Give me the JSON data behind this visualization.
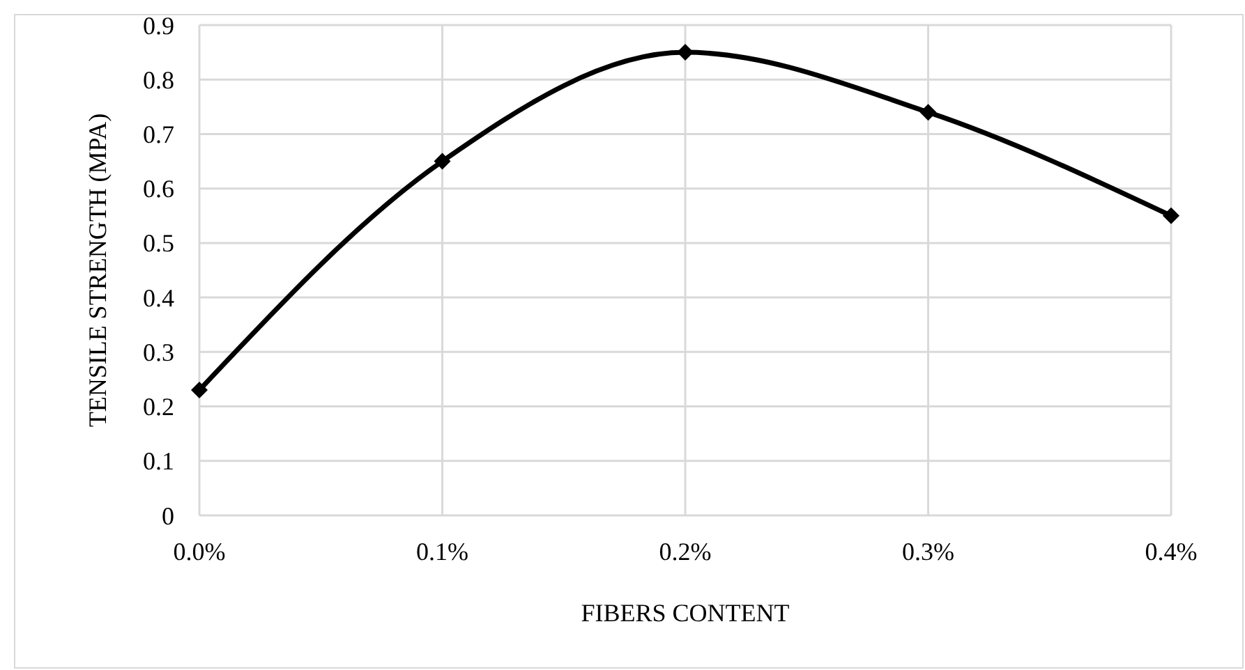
{
  "chart_data": {
    "type": "line",
    "xlabel": "FIBERS CONTENT",
    "ylabel": "TENSILE STRENGTH (MPA)",
    "categories": [
      "0.0%",
      "0.1%",
      "0.2%",
      "0.3%",
      "0.4%"
    ],
    "series": [
      {
        "color": "#000000",
        "values": [
          0.23,
          0.65,
          0.85,
          0.74,
          0.55
        ]
      }
    ],
    "ylim": [
      0,
      0.9
    ],
    "yticks": [
      0,
      0.1,
      0.2,
      0.3,
      0.4,
      0.5,
      0.6,
      0.7,
      0.8,
      0.9
    ],
    "grid": true,
    "marker": "diamond",
    "line_style": "solid"
  }
}
